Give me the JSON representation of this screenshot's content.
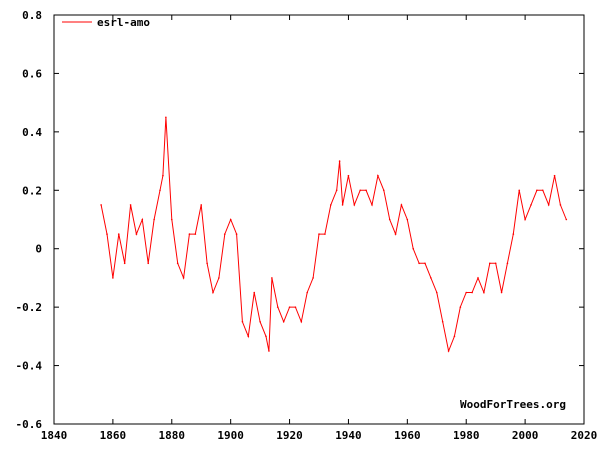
{
  "chart_data": {
    "type": "line",
    "title": "",
    "xlabel": "",
    "ylabel": "",
    "xlim": [
      1840,
      2020
    ],
    "ylim": [
      -0.6,
      0.8
    ],
    "x_ticks": [
      1840,
      1860,
      1880,
      1900,
      1920,
      1940,
      1960,
      1980,
      2000,
      2020
    ],
    "y_ticks": [
      -0.6,
      -0.4,
      -0.2,
      0,
      0.2,
      0.4,
      0.6,
      0.8
    ],
    "y_tick_labels": [
      "-0.6",
      "-0.4",
      "-0.2",
      "0",
      "0.2",
      "0.4",
      "0.6",
      "0.8"
    ],
    "grid": false,
    "legend_position": "top-left",
    "series": [
      {
        "name": "esrl-amo",
        "color": "#ff0000",
        "x": [
          1856,
          1858,
          1860,
          1862,
          1864,
          1866,
          1868,
          1870,
          1872,
          1874,
          1876,
          1877,
          1878,
          1880,
          1882,
          1884,
          1886,
          1888,
          1890,
          1892,
          1894,
          1896,
          1898,
          1900,
          1902,
          1904,
          1906,
          1908,
          1910,
          1912,
          1913,
          1914,
          1916,
          1918,
          1920,
          1922,
          1924,
          1926,
          1928,
          1930,
          1932,
          1934,
          1936,
          1937,
          1938,
          1940,
          1942,
          1944,
          1946,
          1948,
          1950,
          1952,
          1954,
          1956,
          1958,
          1960,
          1962,
          1964,
          1966,
          1968,
          1970,
          1972,
          1974,
          1976,
          1978,
          1980,
          1982,
          1984,
          1986,
          1988,
          1990,
          1992,
          1994,
          1996,
          1998,
          2000,
          2002,
          2004,
          2006,
          2008,
          2010,
          2012,
          2014
        ],
        "y": [
          0.15,
          0.05,
          -0.1,
          0.05,
          -0.05,
          0.15,
          0.05,
          0.1,
          -0.05,
          0.1,
          0.2,
          0.25,
          0.45,
          0.1,
          -0.05,
          -0.1,
          0.05,
          0.05,
          0.15,
          -0.05,
          -0.15,
          -0.1,
          0.05,
          0.1,
          0.05,
          -0.25,
          -0.3,
          -0.15,
          -0.25,
          -0.3,
          -0.35,
          -0.1,
          -0.2,
          -0.25,
          -0.2,
          -0.2,
          -0.25,
          -0.15,
          -0.1,
          0.05,
          0.05,
          0.15,
          0.2,
          0.3,
          0.15,
          0.25,
          0.15,
          0.2,
          0.2,
          0.15,
          0.25,
          0.2,
          0.1,
          0.05,
          0.15,
          0.1,
          0.0,
          -0.05,
          -0.05,
          -0.1,
          -0.15,
          -0.25,
          -0.35,
          -0.3,
          -0.2,
          -0.15,
          -0.15,
          -0.1,
          -0.15,
          -0.05,
          -0.05,
          -0.15,
          -0.05,
          0.05,
          0.2,
          0.1,
          0.15,
          0.2,
          0.2,
          0.15,
          0.25,
          0.15,
          0.1
        ]
      }
    ],
    "watermark": "WoodForTrees.org"
  }
}
